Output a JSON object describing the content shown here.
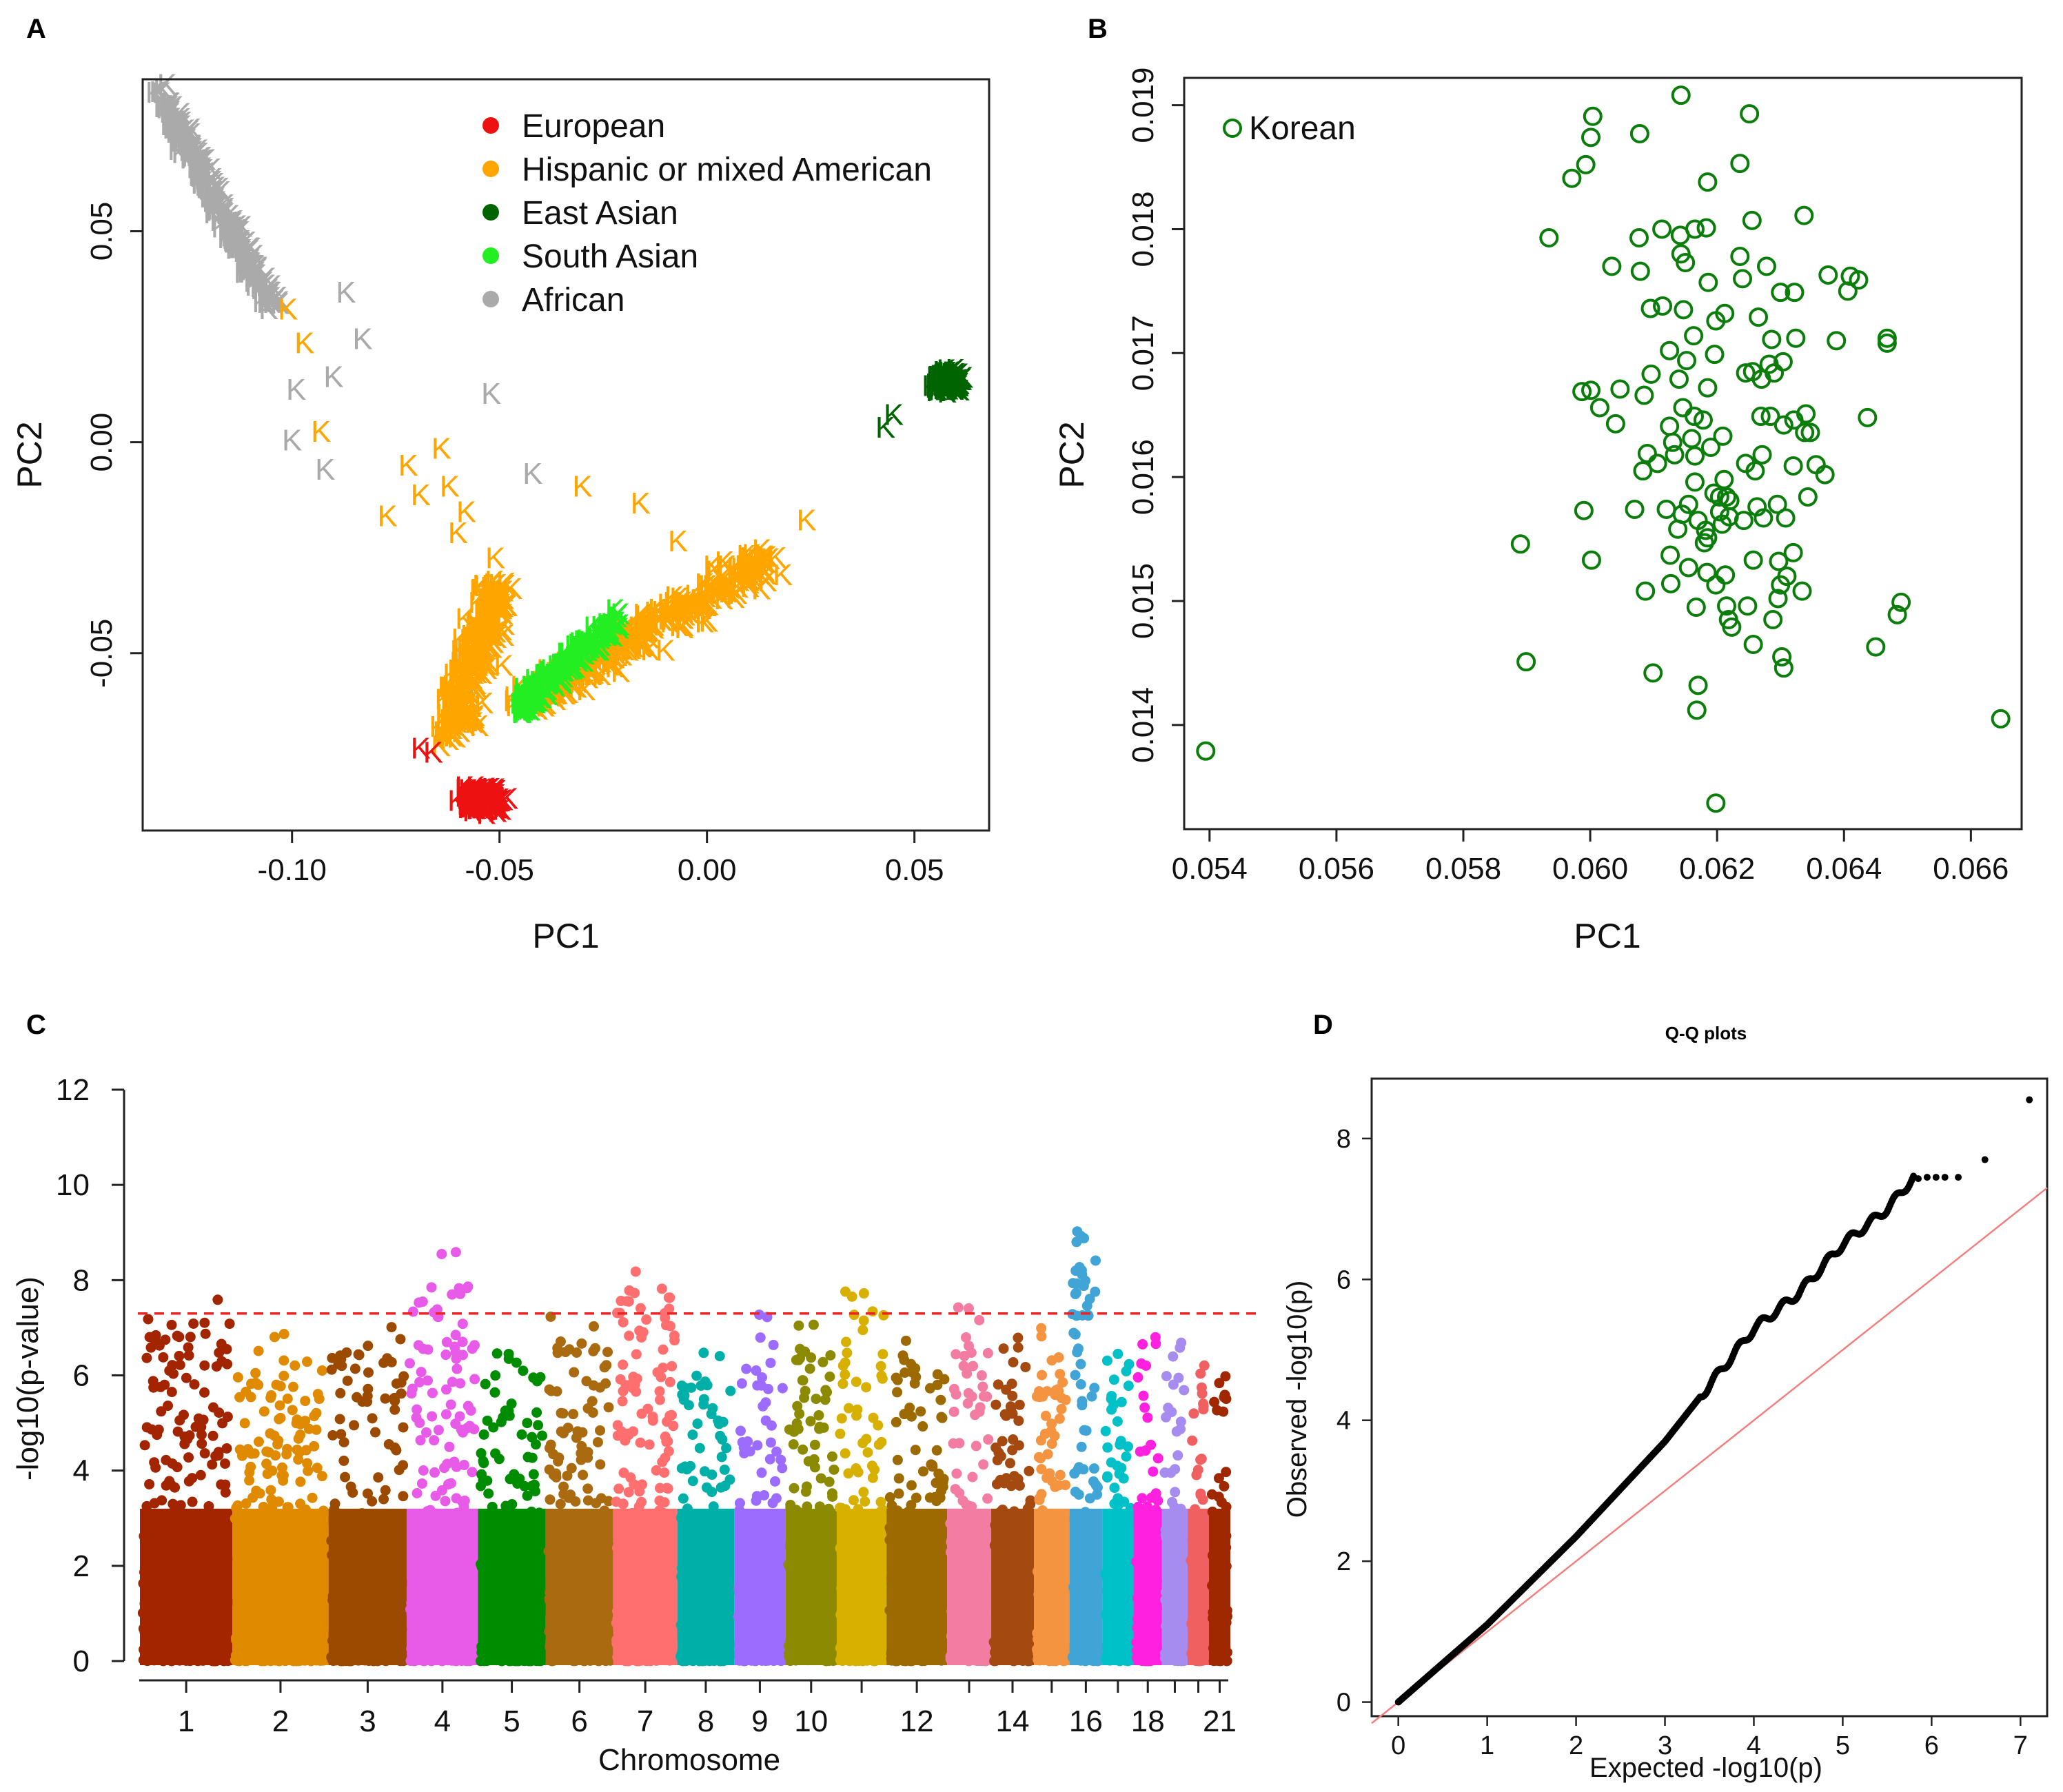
{
  "panel_letters": {
    "a": "A",
    "b": "B",
    "c": "C",
    "d": "D"
  },
  "colors": {
    "european": "#ee1111",
    "hispanic": "#ffa500",
    "east_asian": "#006400",
    "south_asian": "#22ee22",
    "african": "#aaaaaa",
    "korean_circle": "#0a7d0a",
    "threshold": "#ee2222",
    "qq_line": "#f28080",
    "qq_points": "#000000"
  },
  "chart_data": [
    {
      "panel": "A",
      "type": "scatter",
      "xlabel": "PC1",
      "ylabel": "PC2",
      "xlim": [
        -0.136,
        0.068
      ],
      "ylim": [
        -0.092,
        0.086
      ],
      "xticks": [
        -0.1,
        -0.05,
        0.0,
        0.05
      ],
      "xtick_labels": [
        "-0.10",
        "-0.05",
        "0.00",
        "0.05"
      ],
      "yticks": [
        -0.05,
        0.0,
        0.05
      ],
      "ytick_labels": [
        "-0.05",
        "0.00",
        "0.05"
      ],
      "marker_label": "K",
      "legend": {
        "position": "top-center",
        "entries": [
          {
            "label": "European",
            "color": "#ee1111"
          },
          {
            "label": "Hispanic or mixed American",
            "color": "#ffa500"
          },
          {
            "label": "East Asian",
            "color": "#006400"
          },
          {
            "label": "South Asian",
            "color": "#22ee22"
          },
          {
            "label": "African",
            "color": "#aaaaaa"
          }
        ]
      },
      "clusters": [
        {
          "group": "African",
          "center": [
            -0.12,
            0.06
          ],
          "note": "diagonal band from (-0.13,0.08) to (-0.105,0.03)"
        },
        {
          "group": "Hispanic or mixed American",
          "center": [
            -0.035,
            -0.045
          ],
          "note": "V-shaped cloud spanning PC1 -0.065 to 0.018"
        },
        {
          "group": "South Asian",
          "center": [
            -0.035,
            -0.055
          ]
        },
        {
          "group": "European",
          "center": [
            -0.055,
            -0.085
          ]
        },
        {
          "group": "East Asian",
          "center": [
            0.058,
            0.015
          ]
        }
      ],
      "outliers": [
        {
          "group": "African",
          "x": -0.087,
          "y": 0.035
        },
        {
          "group": "African",
          "x": -0.083,
          "y": 0.024
        },
        {
          "group": "African",
          "x": -0.09,
          "y": 0.015
        },
        {
          "group": "African",
          "x": -0.052,
          "y": 0.011
        },
        {
          "group": "African",
          "x": -0.092,
          "y": -0.007
        },
        {
          "group": "African",
          "x": -0.042,
          "y": -0.008
        },
        {
          "group": "African",
          "x": -0.099,
          "y": 0.012
        },
        {
          "group": "African",
          "x": -0.1,
          "y": 0.0
        },
        {
          "group": "Hispanic",
          "x": -0.101,
          "y": 0.031
        },
        {
          "group": "Hispanic",
          "x": -0.097,
          "y": 0.023
        },
        {
          "group": "Hispanic",
          "x": -0.093,
          "y": 0.002
        },
        {
          "group": "Hispanic",
          "x": -0.072,
          "y": -0.006
        },
        {
          "group": "Hispanic",
          "x": -0.064,
          "y": -0.002
        },
        {
          "group": "Hispanic",
          "x": -0.062,
          "y": -0.011
        },
        {
          "group": "Hispanic",
          "x": -0.069,
          "y": -0.013
        },
        {
          "group": "Hispanic",
          "x": -0.077,
          "y": -0.018
        },
        {
          "group": "Hispanic",
          "x": -0.058,
          "y": -0.017
        },
        {
          "group": "Hispanic",
          "x": -0.06,
          "y": -0.022
        },
        {
          "group": "Hispanic",
          "x": -0.03,
          "y": -0.011
        },
        {
          "group": "Hispanic",
          "x": -0.016,
          "y": -0.015
        },
        {
          "group": "Hispanic",
          "x": -0.007,
          "y": -0.024
        },
        {
          "group": "Hispanic",
          "x": 0.024,
          "y": -0.019
        },
        {
          "group": "Hispanic",
          "x": -0.051,
          "y": -0.028
        },
        {
          "group": "European",
          "x": -0.069,
          "y": -0.073
        },
        {
          "group": "European",
          "x": -0.066,
          "y": -0.074
        },
        {
          "group": "East Asian",
          "x": 0.043,
          "y": 0.003
        },
        {
          "group": "East Asian",
          "x": 0.045,
          "y": 0.006
        }
      ]
    },
    {
      "panel": "B",
      "type": "scatter",
      "xlabel": "PC1",
      "ylabel": "PC2",
      "xlim": [
        0.0536,
        0.0668
      ],
      "ylim": [
        0.01316,
        0.01922
      ],
      "xtick_labels": [
        "0.054",
        "0.056",
        "0.058",
        "0.060",
        "0.062",
        "0.064",
        "0.066"
      ],
      "ytick_labels": [
        "0.014",
        "0.015",
        "0.016",
        "0.017",
        "0.018",
        "0.019"
      ],
      "legend": {
        "position": "top-left",
        "entries": [
          {
            "label": "Korean",
            "color": "#0a7d0a",
            "marker": "open-circle"
          }
        ]
      },
      "points": [
        [
          0.05394,
          0.01379
        ],
        [
          0.06647,
          0.01405
        ],
        [
          0.06198,
          0.01337
        ],
        [
          0.0589,
          0.01546
        ],
        [
          0.05899,
          0.01451
        ],
        [
          0.05935,
          0.01793
        ],
        [
          0.05971,
          0.01841
        ],
        [
          0.05993,
          0.01852
        ],
        [
          0.06001,
          0.01874
        ],
        [
          0.06004,
          0.01891
        ],
        [
          0.06078,
          0.01877
        ],
        [
          0.06143,
          0.01908
        ],
        [
          0.06251,
          0.01893
        ],
        [
          0.06236,
          0.01853
        ],
        [
          0.06185,
          0.01838
        ],
        [
          0.06077,
          0.01793
        ],
        [
          0.06113,
          0.018
        ],
        [
          0.06142,
          0.01795
        ],
        [
          0.06165,
          0.018
        ],
        [
          0.06183,
          0.01801
        ],
        [
          0.06255,
          0.01807
        ],
        [
          0.06337,
          0.01811
        ],
        [
          0.06034,
          0.0177
        ],
        [
          0.06079,
          0.01766
        ],
        [
          0.06143,
          0.0178
        ],
        [
          0.0615,
          0.01773
        ],
        [
          0.06186,
          0.01757
        ],
        [
          0.06236,
          0.01778
        ],
        [
          0.0624,
          0.0176
        ],
        [
          0.06278,
          0.0177
        ],
        [
          0.063,
          0.01749
        ],
        [
          0.06322,
          0.01749
        ],
        [
          0.06375,
          0.01763
        ],
        [
          0.0641,
          0.01762
        ],
        [
          0.06423,
          0.01759
        ],
        [
          0.06406,
          0.0175
        ],
        [
          0.06095,
          0.01736
        ],
        [
          0.06114,
          0.01738
        ],
        [
          0.06147,
          0.01735
        ],
        [
          0.06198,
          0.01726
        ],
        [
          0.06212,
          0.01732
        ],
        [
          0.06265,
          0.01729
        ],
        [
          0.06163,
          0.01714
        ],
        [
          0.06286,
          0.01711
        ],
        [
          0.06324,
          0.01712
        ],
        [
          0.06388,
          0.0171
        ],
        [
          0.06468,
          0.01712
        ],
        [
          0.06468,
          0.01708
        ],
        [
          0.06125,
          0.01702
        ],
        [
          0.06152,
          0.01694
        ],
        [
          0.06196,
          0.01699
        ],
        [
          0.06245,
          0.01684
        ],
        [
          0.06256,
          0.01685
        ],
        [
          0.06282,
          0.01691
        ],
        [
          0.06304,
          0.01693
        ],
        [
          0.06096,
          0.01683
        ],
        [
          0.05987,
          0.01669
        ],
        [
          0.06001,
          0.0167
        ],
        [
          0.06047,
          0.01671
        ],
        [
          0.06085,
          0.01666
        ],
        [
          0.0614,
          0.01679
        ],
        [
          0.06185,
          0.01672
        ],
        [
          0.0627,
          0.01679
        ],
        [
          0.0629,
          0.01684
        ],
        [
          0.06015,
          0.01656
        ],
        [
          0.06146,
          0.01656
        ],
        [
          0.06164,
          0.01649
        ],
        [
          0.06178,
          0.01646
        ],
        [
          0.0604,
          0.01643
        ],
        [
          0.06125,
          0.01641
        ],
        [
          0.0616,
          0.01631
        ],
        [
          0.06269,
          0.01649
        ],
        [
          0.06284,
          0.01649
        ],
        [
          0.06305,
          0.01642
        ],
        [
          0.06321,
          0.01646
        ],
        [
          0.06338,
          0.01636
        ],
        [
          0.0634,
          0.01651
        ],
        [
          0.06437,
          0.01648
        ],
        [
          0.06347,
          0.01636
        ],
        [
          0.06209,
          0.01633
        ],
        [
          0.0613,
          0.01628
        ],
        [
          0.0619,
          0.01624
        ],
        [
          0.0609,
          0.01619
        ],
        [
          0.06133,
          0.01618
        ],
        [
          0.06165,
          0.01617
        ],
        [
          0.06106,
          0.01611
        ],
        [
          0.06245,
          0.01611
        ],
        [
          0.06271,
          0.01618
        ],
        [
          0.0632,
          0.01609
        ],
        [
          0.06083,
          0.01605
        ],
        [
          0.06165,
          0.01596
        ],
        [
          0.06211,
          0.01598
        ],
        [
          0.0626,
          0.01605
        ],
        [
          0.06356,
          0.0161
        ],
        [
          0.0637,
          0.01602
        ],
        [
          0.06195,
          0.01587
        ],
        [
          0.06215,
          0.01584
        ],
        [
          0.06155,
          0.01578
        ],
        [
          0.06204,
          0.01584
        ],
        [
          0.0622,
          0.01581
        ],
        [
          0.06263,
          0.01576
        ],
        [
          0.06295,
          0.01578
        ],
        [
          0.0617,
          0.01565
        ],
        [
          0.06204,
          0.01572
        ],
        [
          0.06219,
          0.01568
        ],
        [
          0.06242,
          0.01565
        ],
        [
          0.06273,
          0.01567
        ],
        [
          0.0599,
          0.01573
        ],
        [
          0.0607,
          0.01574
        ],
        [
          0.0612,
          0.01574
        ],
        [
          0.06145,
          0.0157
        ],
        [
          0.06182,
          0.01557
        ],
        [
          0.06308,
          0.01567
        ],
        [
          0.06343,
          0.01584
        ],
        [
          0.06208,
          0.01562
        ],
        [
          0.06185,
          0.01551
        ],
        [
          0.06138,
          0.01558
        ],
        [
          0.0618,
          0.01547
        ],
        [
          0.06002,
          0.01533
        ],
        [
          0.06126,
          0.01537
        ],
        [
          0.06155,
          0.01527
        ],
        [
          0.06184,
          0.01523
        ],
        [
          0.06213,
          0.01521
        ],
        [
          0.06257,
          0.01533
        ],
        [
          0.06297,
          0.01532
        ],
        [
          0.0632,
          0.01539
        ],
        [
          0.06087,
          0.01508
        ],
        [
          0.06127,
          0.01514
        ],
        [
          0.06198,
          0.01513
        ],
        [
          0.06215,
          0.01496
        ],
        [
          0.06248,
          0.01496
        ],
        [
          0.063,
          0.01513
        ],
        [
          0.0631,
          0.0152
        ],
        [
          0.06334,
          0.01508
        ],
        [
          0.06296,
          0.01502
        ],
        [
          0.06167,
          0.01495
        ],
        [
          0.06218,
          0.01485
        ],
        [
          0.06223,
          0.01479
        ],
        [
          0.06288,
          0.01485
        ],
        [
          0.0649,
          0.01499
        ],
        [
          0.06484,
          0.01489
        ],
        [
          0.06257,
          0.01465
        ],
        [
          0.06302,
          0.01455
        ],
        [
          0.06305,
          0.01446
        ],
        [
          0.0645,
          0.01463
        ],
        [
          0.06099,
          0.01442
        ],
        [
          0.0617,
          0.01432
        ],
        [
          0.06168,
          0.01412
        ]
      ]
    },
    {
      "panel": "C",
      "type": "scatter",
      "subtype": "manhattan",
      "xlabel": "Chromosome",
      "ylabel": "-log10(p-value)",
      "ylim": [
        0,
        12
      ],
      "yticks": [
        0,
        2,
        4,
        6,
        8,
        10,
        12
      ],
      "xtick_labels": [
        "1",
        "2",
        "3",
        "4",
        "5",
        "6",
        "7",
        "8",
        "9",
        "10",
        "12",
        "14",
        "16",
        "18",
        "21"
      ],
      "threshold": 7.3,
      "chromosomes": [
        {
          "chr": 1,
          "max": 7.85,
          "color": "#a32500"
        },
        {
          "chr": 2,
          "max": 7.0,
          "color": "#e08a00"
        },
        {
          "chr": 3,
          "max": 7.1,
          "color": "#9c4a00"
        },
        {
          "chr": 4,
          "max": 8.6,
          "color": "#e85ae8"
        },
        {
          "chr": 5,
          "max": 6.7,
          "color": "#008c00"
        },
        {
          "chr": 6,
          "max": 7.3,
          "color": "#a96a10"
        },
        {
          "chr": 7,
          "max": 8.35,
          "color": "#ff6f6f"
        },
        {
          "chr": 8,
          "max": 6.6,
          "color": "#00b0a8"
        },
        {
          "chr": 9,
          "max": 7.3,
          "color": "#9b6cff"
        },
        {
          "chr": 10,
          "max": 7.1,
          "color": "#8c8a00"
        },
        {
          "chr": 11,
          "max": 7.95,
          "color": "#d7b000"
        },
        {
          "chr": 12,
          "max": 6.9,
          "color": "#9c6a00"
        },
        {
          "chr": 13,
          "max": 7.55,
          "color": "#f27ca2"
        },
        {
          "chr": 14,
          "max": 6.9,
          "color": "#a44a10"
        },
        {
          "chr": 15,
          "max": 7.0,
          "color": "#f49440"
        },
        {
          "chr": 16,
          "max": 9.1,
          "color": "#40a5d6"
        },
        {
          "chr": 17,
          "max": 6.8,
          "color": "#00c0c8"
        },
        {
          "chr": 18,
          "max": 7.0,
          "color": "#ff20e0"
        },
        {
          "chr": 19,
          "max": 6.7,
          "color": "#a78cf0"
        },
        {
          "chr": 20,
          "max": 6.4,
          "color": "#f06060"
        },
        {
          "chr": 21,
          "max": 6.3,
          "color": "#a02800"
        }
      ]
    },
    {
      "panel": "D",
      "type": "scatter",
      "subtype": "qq",
      "title": "Q-Q plots",
      "xlabel": "Expected -log10(p)",
      "ylabel": "Observed -log10(p)",
      "xlim": [
        -0.3,
        7.3
      ],
      "ylim": [
        -0.2,
        8.85
      ],
      "xticks": [
        0,
        1,
        2,
        3,
        4,
        5,
        6,
        7
      ],
      "yticks": [
        0,
        2,
        4,
        6,
        8
      ],
      "xtick_labels": [
        "0",
        "1",
        "2",
        "3",
        "4",
        "5",
        "6",
        "7"
      ],
      "ytick_labels": [
        "0",
        "2",
        "4",
        "6",
        "8"
      ],
      "curve": [
        [
          0,
          0
        ],
        [
          1,
          1.1
        ],
        [
          2,
          2.35
        ],
        [
          3,
          3.7
        ],
        [
          3.5,
          4.5
        ],
        [
          4,
          5.3
        ],
        [
          4.5,
          5.8
        ],
        [
          5,
          6.5
        ],
        [
          5.5,
          7.0
        ],
        [
          5.8,
          7.45
        ],
        [
          6.2,
          7.45
        ],
        [
          6.6,
          7.7
        ],
        [
          7.1,
          8.55
        ]
      ],
      "reference_line": {
        "slope": 1,
        "intercept": 0
      }
    }
  ]
}
